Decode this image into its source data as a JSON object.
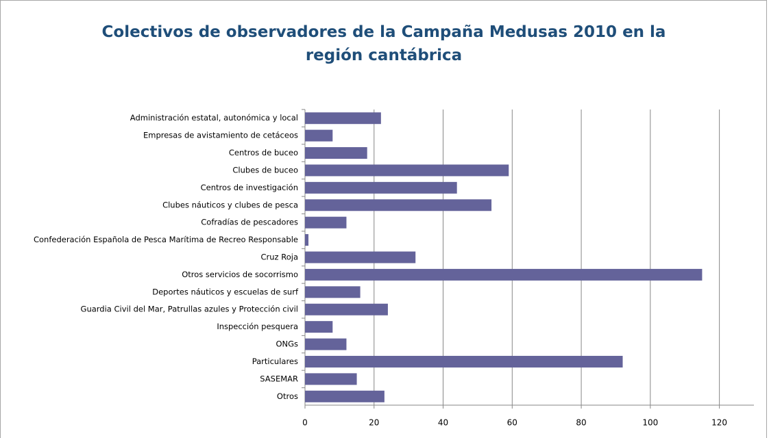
{
  "chart_data": {
    "type": "barh",
    "title": "Colectivos de observadores de la Campaña Medusas 2010 en la región cantábrica",
    "categories": [
      "Administración estatal, autonómica y local",
      "Empresas de avistamiento de cetáceos",
      "Centros de buceo",
      "Clubes de buceo",
      "Centros de investigación",
      "Clubes náuticos y clubes de pesca",
      "Cofradías de pescadores",
      "Confederación Española de Pesca Marítima de Recreo Responsable",
      "Cruz Roja",
      "Otros servicios de socorrismo",
      "Deportes náuticos y escuelas de surf",
      "Guardia Civil del Mar, Patrullas azules y Protección civil",
      "Inspección pesquera",
      "ONGs",
      "Particulares",
      "SASEMAR",
      "Otros"
    ],
    "values": [
      22,
      8,
      18,
      59,
      44,
      54,
      12,
      1,
      32,
      115,
      16,
      24,
      8,
      12,
      92,
      15,
      23
    ],
    "color": "#64639a",
    "xlim": [
      0,
      130
    ],
    "xticks": [
      0,
      20,
      40,
      60,
      80,
      100,
      120
    ],
    "grid": true
  }
}
